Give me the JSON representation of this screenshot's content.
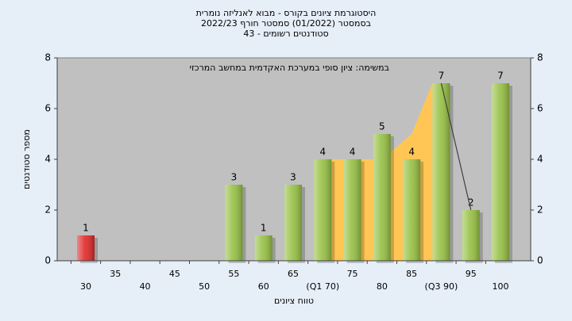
{
  "chart_data": {
    "type": "bar",
    "title": [
      "היסטוגרמת ציונים בקורס - מבוא לאנליזה נומרית",
      "בסמסטר (01/2022) סמסטר חורף 2022/23",
      "סטודנטים רשומים - 43"
    ],
    "annotation": "במשימה: ציון סופי במערכת האקדמית במחשב המרכזי",
    "x_label": "טווח ציונים",
    "y_label": "מספר סטודנטים",
    "categories": [
      "30",
      "35",
      "40",
      "45",
      "50",
      "55",
      "60",
      "65",
      "(Q1 70)",
      "75",
      "80",
      "85",
      "(Q3 90)",
      "95",
      "100"
    ],
    "values": [
      1,
      0,
      0,
      0,
      0,
      3,
      1,
      3,
      4,
      4,
      5,
      4,
      7,
      2,
      7
    ],
    "bar_colors": [
      "#e02828",
      "#96c043",
      "#96c043",
      "#96c043",
      "#96c043",
      "#96c043",
      "#96c043",
      "#96c043",
      "#96c043",
      "#96c043",
      "#96c043",
      "#96c043",
      "#96c043",
      "#96c043",
      "#96c043"
    ],
    "quartile_area": {
      "color": "#ffc655",
      "values": [
        null,
        null,
        null,
        null,
        null,
        null,
        null,
        null,
        4,
        4,
        4,
        5,
        7,
        null,
        null
      ]
    },
    "trend_line": {
      "color": "#404040",
      "values": [
        null,
        null,
        null,
        null,
        null,
        null,
        null,
        null,
        null,
        null,
        null,
        null,
        7,
        2,
        null
      ]
    },
    "ylim": [
      0,
      8
    ],
    "yticks": [
      0,
      2,
      4,
      6,
      8
    ],
    "y2lim": [
      0,
      8
    ],
    "y2ticks": [
      0,
      2,
      4,
      6,
      8
    ],
    "grid": false
  }
}
